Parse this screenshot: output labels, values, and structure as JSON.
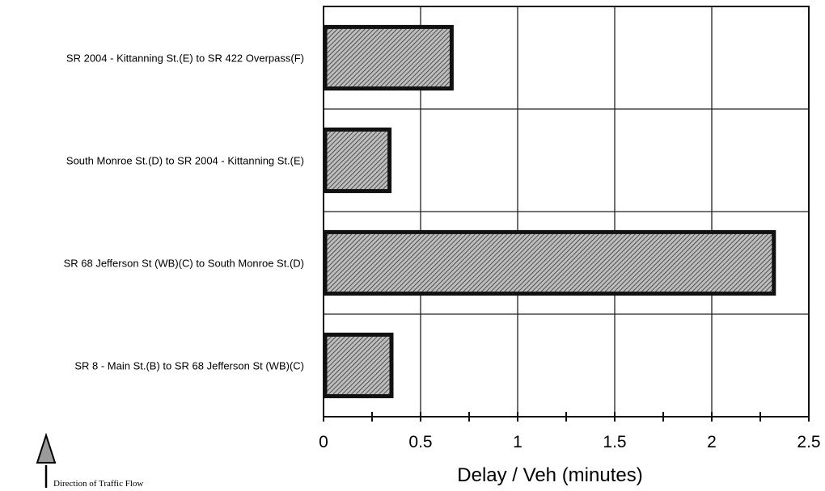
{
  "chart_data": {
    "type": "bar",
    "orientation": "horizontal",
    "categories": [
      "SR 2004 - Kittanning St.(E) to SR 422 Overpass(F)",
      "South Monroe St.(D) to SR 2004 - Kittanning St.(E)",
      "SR 68 Jefferson St (WB)(C) to South Monroe St.(D)",
      "SR 8 - Main St.(B) to SR 68 Jefferson St (WB)(C)"
    ],
    "values": [
      0.66,
      0.34,
      2.32,
      0.35
    ],
    "xlabel": "Delay / Veh (minutes)",
    "ylabel": "",
    "xlim": [
      0,
      2.5
    ],
    "xticks": [
      0,
      0.5,
      1,
      1.5,
      2,
      2.5
    ],
    "xtick_labels": [
      "0",
      "0.5",
      "1",
      "1.5",
      "2",
      "2.5"
    ],
    "grid": true,
    "bar_pattern": "diagonal-hatch",
    "bar_color": "#8a8a8a",
    "bar_edge_color": "#111111"
  },
  "annotation": {
    "direction_label": "Direction of Traffic Flow",
    "arrow_icon": "arrow-up-icon"
  }
}
